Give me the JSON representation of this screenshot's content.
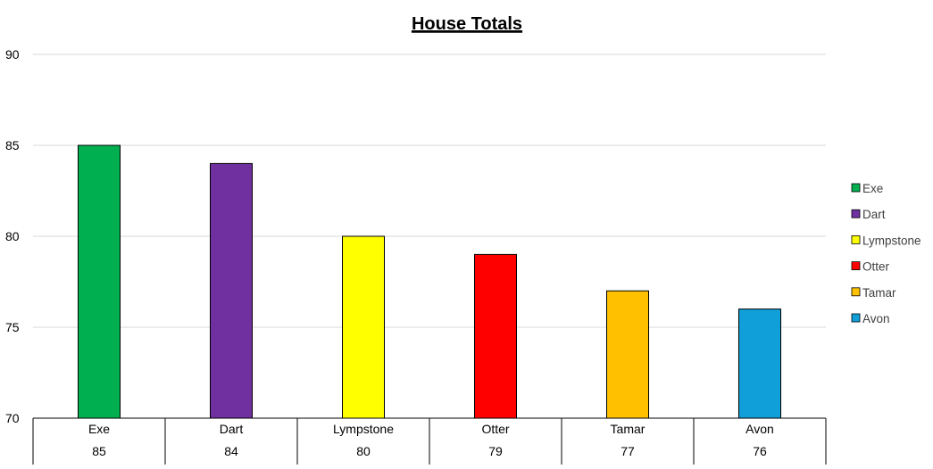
{
  "chart_data": {
    "type": "bar",
    "title": "House Totals",
    "xlabel": "",
    "ylabel": "",
    "ylim": [
      70,
      90
    ],
    "yticks": [
      70,
      75,
      80,
      85,
      90
    ],
    "grid": true,
    "legend_position": "right",
    "categories": [
      "Exe",
      "Dart",
      "Lympstone",
      "Otter",
      "Tamar",
      "Avon"
    ],
    "values": [
      85,
      84,
      80,
      79,
      77,
      76
    ],
    "value_labels": [
      "85",
      "84",
      "80",
      "79",
      "77",
      "76"
    ],
    "colors": [
      "#00B050",
      "#7030A0",
      "#FFFF00",
      "#FF0000",
      "#FFC000",
      "#109FD9"
    ],
    "legend": [
      "Exe",
      "Dart",
      "Lympstone",
      "Otter",
      "Tamar",
      "Avon"
    ]
  }
}
